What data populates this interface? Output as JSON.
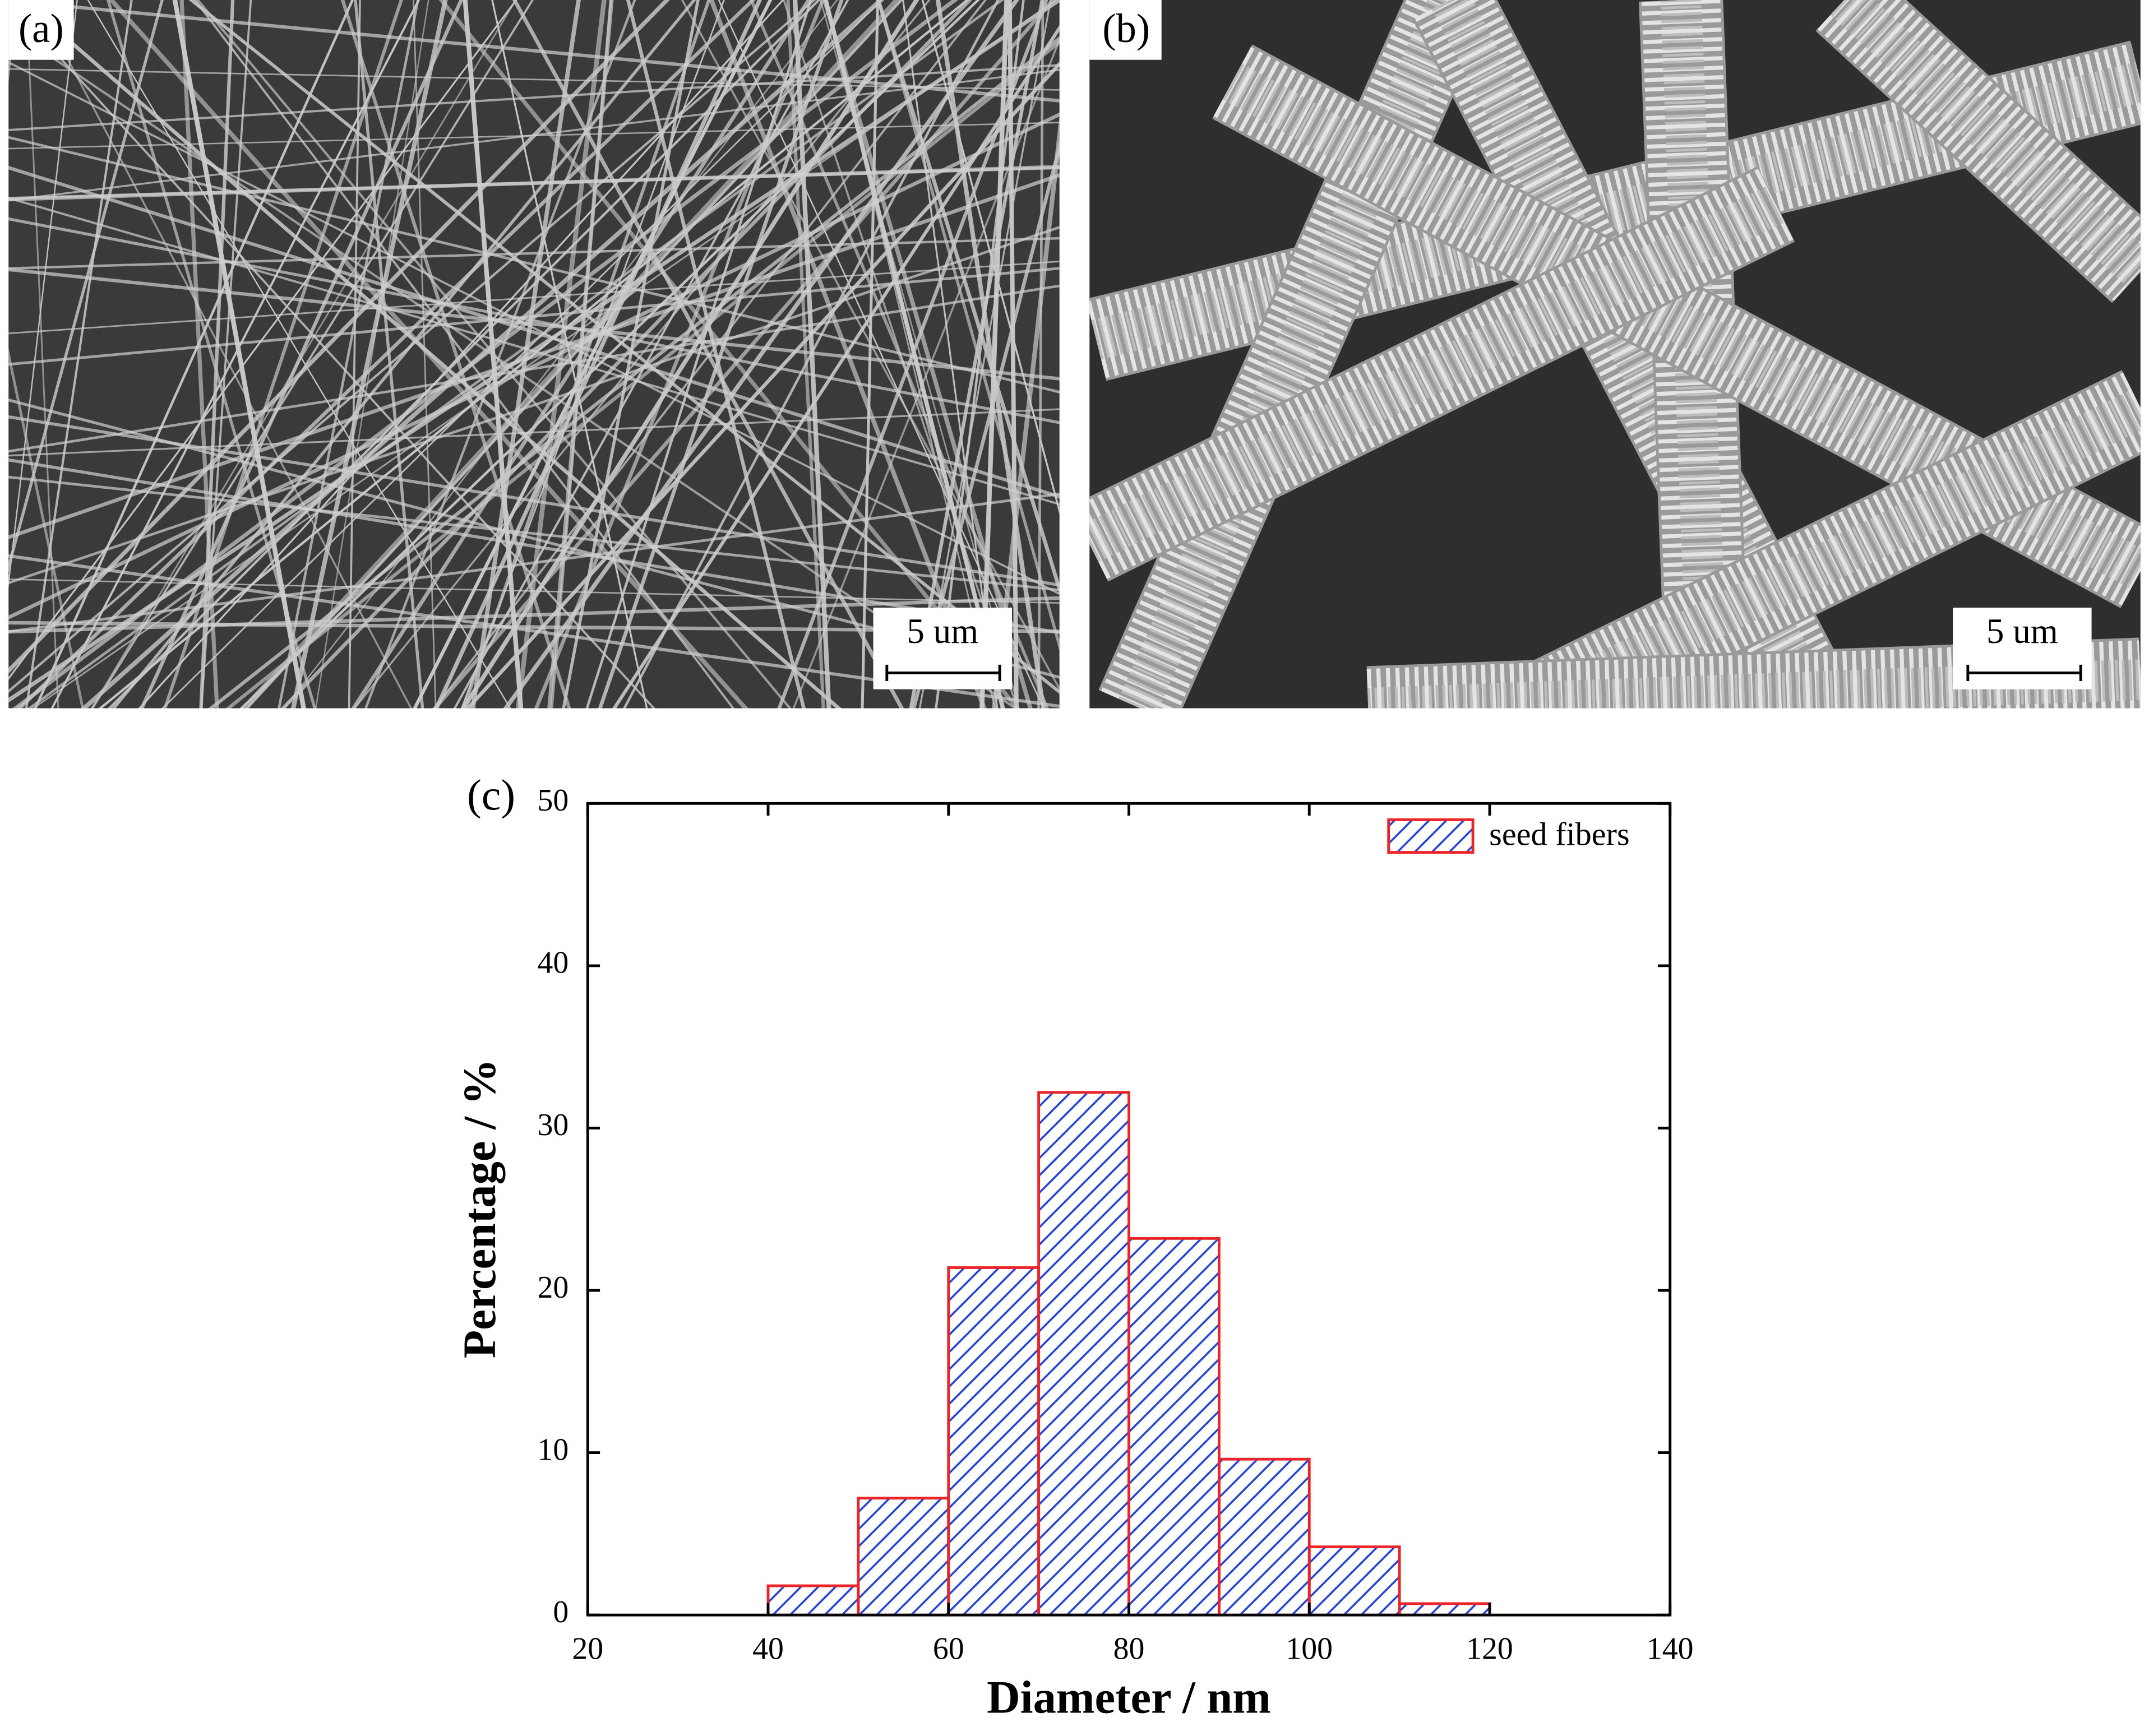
{
  "panels": [
    {
      "label": "(a)",
      "scale_bar": "5 um"
    },
    {
      "label": "(b)",
      "scale_bar": "5 um"
    }
  ],
  "chart_data": {
    "type": "histogram",
    "panel_label": "(c)",
    "x_label": "Diameter /  nm",
    "y_label": "Percentage / %",
    "bins": [
      40,
      50,
      60,
      70,
      80,
      90,
      100,
      110,
      120
    ],
    "series": [
      {
        "name": "seed fibers",
        "color": "#1f3fd6",
        "edgecolor": "#e8262a",
        "values": [
          1.8,
          7.2,
          21.4,
          32.2,
          23.2,
          9.6,
          4.2,
          0.7
        ]
      }
    ],
    "xlim": [
      20,
      140
    ],
    "xticks": [
      20,
      40,
      60,
      80,
      100,
      120,
      140
    ],
    "ylim": [
      0,
      50
    ],
    "yticks": [
      0,
      10,
      20,
      30,
      40,
      50
    ],
    "legend": "upper right"
  }
}
